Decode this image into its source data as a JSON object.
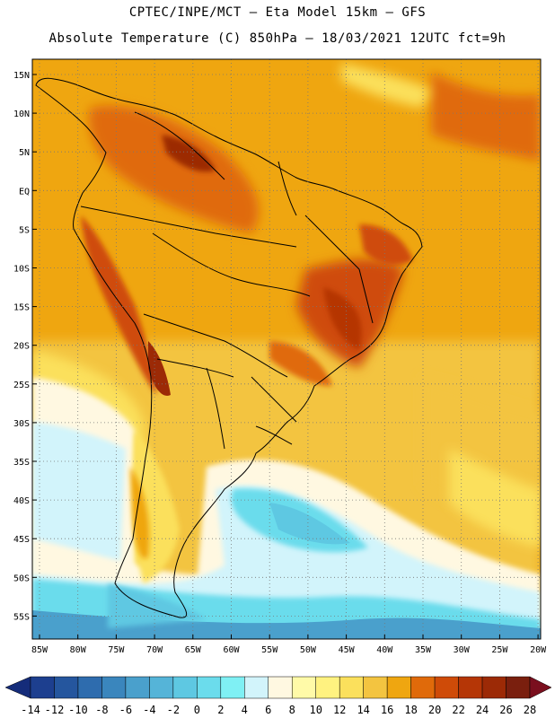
{
  "title_line1": "CPTEC/INPE/MCT –  Eta Model 15km – GFS",
  "title_line2": "Absolute Temperature (C) 850hPa – 18/03/2021 12UTC fct=9h",
  "map": {
    "lat_labels": [
      "15N",
      "10N",
      "5N",
      "EQ",
      "5S",
      "10S",
      "15S",
      "20S",
      "25S",
      "30S",
      "35S",
      "40S",
      "45S",
      "50S",
      "55S"
    ],
    "lon_labels": [
      "85W",
      "80W",
      "75W",
      "70W",
      "65W",
      "60W",
      "55W",
      "50W",
      "45W",
      "40W",
      "35W",
      "30W",
      "25W",
      "20W"
    ]
  },
  "colorbar": {
    "labels": [
      "-14",
      "-12",
      "-10",
      "-8",
      "-6",
      "-4",
      "-2",
      "0",
      "2",
      "4",
      "6",
      "8",
      "10",
      "12",
      "14",
      "16",
      "18",
      "20",
      "22",
      "24",
      "26",
      "28"
    ],
    "colors": [
      "#1d3f8f",
      "#25569e",
      "#2e6cae",
      "#3a86bd",
      "#4aa0cc",
      "#55b4d8",
      "#5ec8e2",
      "#6bdcec",
      "#7ff0f4",
      "#d2f4fb",
      "#fff8e1",
      "#fffaa8",
      "#fff280",
      "#fbe05c",
      "#f3c440",
      "#efa610",
      "#e06a0a",
      "#cf4b08",
      "#b53606",
      "#9c2a06",
      "#7a1f0e"
    ],
    "under_color": "#152c7a",
    "over_color": "#7a0f1e"
  }
}
